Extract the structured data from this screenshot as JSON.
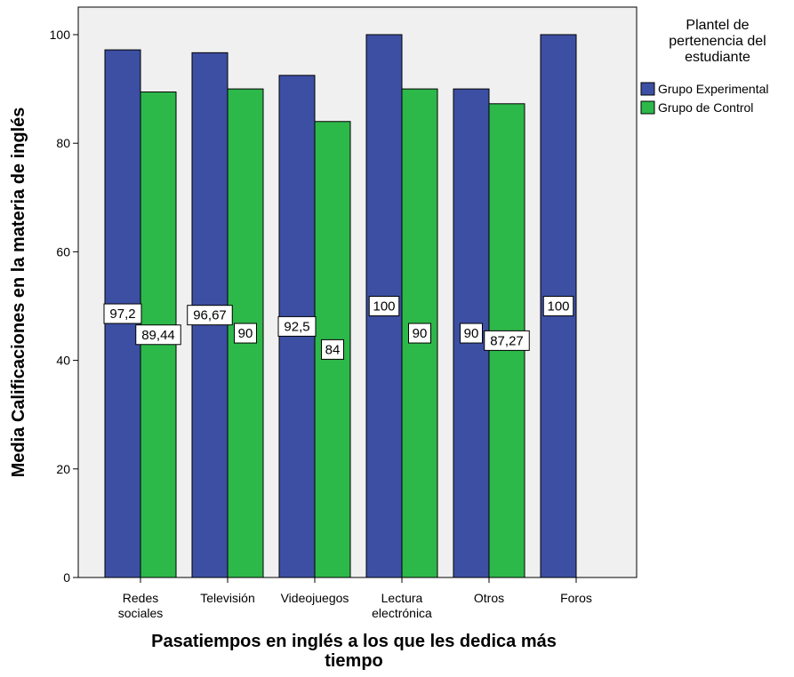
{
  "chart_data": {
    "type": "bar",
    "categories": [
      [
        "Redes",
        "sociales"
      ],
      [
        "Televisión"
      ],
      [
        "Videojuegos"
      ],
      [
        "Lectura",
        "electrónica"
      ],
      [
        "Otros"
      ],
      [
        "Foros"
      ]
    ],
    "series": [
      {
        "name": "Grupo Experimental",
        "color": "#3d4fa3",
        "values": [
          97.2,
          96.67,
          92.5,
          100,
          90,
          100
        ],
        "labels": [
          "97,2",
          "96,67",
          "92,5",
          "100",
          "90",
          "100"
        ]
      },
      {
        "name": "Grupo de Control",
        "color": "#2db84a",
        "values": [
          89.44,
          90,
          84,
          90,
          87.27,
          null
        ],
        "labels": [
          "89,44",
          "90",
          "84",
          "90",
          "87,27",
          null
        ]
      }
    ],
    "xlabel": [
      "Pasatiempos en inglés a los que les dedica más",
      "tiempo"
    ],
    "ylabel": "Media Calificaciones en la materia de inglés",
    "ylim": [
      0,
      100
    ],
    "yticks": [
      0,
      20,
      40,
      60,
      80,
      100
    ],
    "grid": false,
    "plot_background": "#f0f0f0",
    "legend": {
      "title": [
        "Plantel de",
        "pertenencia del",
        "estudiante"
      ],
      "placement": "right"
    }
  }
}
